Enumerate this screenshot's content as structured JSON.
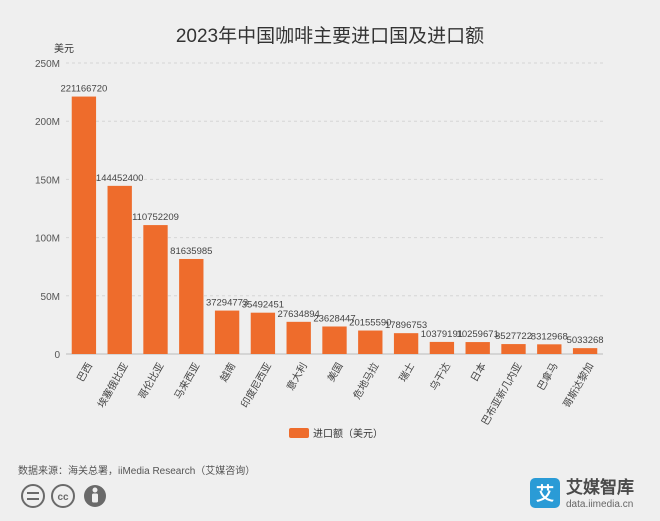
{
  "chart_data": {
    "type": "bar",
    "title": "2023年中国咖啡主要进口国及进口额",
    "ylabel": "美元",
    "ylim": [
      0,
      250000000
    ],
    "yticks": [
      0,
      50000000,
      100000000,
      150000000,
      200000000,
      250000000
    ],
    "ytick_labels": [
      "0",
      "50M",
      "100M",
      "150M",
      "200M",
      "250M"
    ],
    "grid": true,
    "legend_position": "bottom-center",
    "categories": [
      "巴西",
      "埃塞俄比亚",
      "哥伦比亚",
      "马来西亚",
      "越南",
      "印度尼西亚",
      "意大利",
      "美国",
      "危地马拉",
      "瑞士",
      "乌干达",
      "日本",
      "巴布亚新几内亚",
      "巴拿马",
      "哥斯达黎加"
    ],
    "series": [
      {
        "name": "进口额（美元）",
        "color": "#ee6c2c",
        "values": [
          221166720,
          144452400,
          110752209,
          81635985,
          37294773,
          35492451,
          27634894,
          23628447,
          20155590,
          17896753,
          10379191,
          10259671,
          8527722,
          8312968,
          5033268
        ],
        "labels": [
          "221166720",
          "144452400",
          "110752209",
          "81635985",
          "37294773",
          "35492451",
          "27634894",
          "23628447",
          "20155590",
          "17896753",
          "10379191",
          "10259671",
          "8527722",
          "8312968",
          "5033268"
        ]
      }
    ]
  },
  "footer": {
    "source": "数据来源：海关总署，iiMedia Research（艾媒咨询）",
    "license_icons": [
      "equal-icon",
      "cc-icon",
      "person-icon"
    ],
    "license_cc": "cc",
    "logo_glyph": "艾",
    "logo_name": "艾媒智库",
    "logo_url": "data.iimedia.cn"
  },
  "colors": {
    "bar": "#ee6c2c",
    "logo_bg": "#2a9bd6",
    "background": "#efefef",
    "grid": "#d6d6d6"
  }
}
